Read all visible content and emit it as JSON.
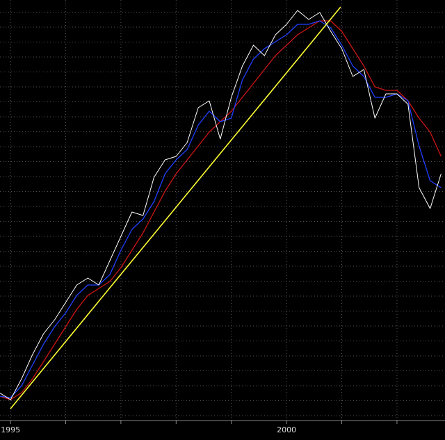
{
  "chart_data": {
    "type": "line",
    "x": [
      1994.8,
      1995.0,
      1995.2,
      1995.4,
      1995.6,
      1995.8,
      1996.0,
      1996.2,
      1996.4,
      1996.6,
      1996.8,
      1997.0,
      1997.2,
      1997.4,
      1997.6,
      1997.8,
      1998.0,
      1998.2,
      1998.4,
      1998.6,
      1998.8,
      1999.0,
      1999.2,
      1999.4,
      1999.6,
      1999.8,
      2000.0,
      2000.2,
      2000.4,
      2000.6,
      2000.8,
      2001.0,
      2001.2,
      2001.4,
      2001.6,
      2001.8,
      2002.0,
      2002.2,
      2002.4,
      2002.6,
      2002.8
    ],
    "series": [
      {
        "color": "#ffffff",
        "values": [
          40,
          30,
          60,
          95,
          125,
          145,
          170,
          195,
          205,
          195,
          230,
          265,
          300,
          295,
          350,
          375,
          380,
          400,
          450,
          460,
          405,
          465,
          510,
          540,
          525,
          555,
          570,
          590,
          577,
          587,
          560,
          535,
          495,
          505,
          435,
          470,
          470,
          455,
          335,
          305,
          355
        ]
      },
      {
        "color": "#2040ff",
        "values": [
          35,
          33,
          50,
          80,
          110,
          135,
          155,
          180,
          195,
          195,
          210,
          245,
          275,
          290,
          315,
          355,
          375,
          390,
          425,
          445,
          430,
          435,
          490,
          520,
          535,
          545,
          555,
          570,
          570,
          575,
          565,
          540,
          510,
          495,
          465,
          465,
          470,
          460,
          395,
          345,
          335
        ]
      },
      {
        "color": "#d01515",
        "values": [
          35,
          30,
          40,
          60,
          85,
          110,
          135,
          160,
          180,
          190,
          200,
          220,
          245,
          270,
          300,
          330,
          355,
          375,
          395,
          415,
          430,
          445,
          465,
          485,
          505,
          525,
          540,
          555,
          565,
          575,
          575,
          560,
          535,
          510,
          480,
          475,
          475,
          460,
          435,
          415,
          380
        ]
      }
    ],
    "trendline": {
      "color": "#ffff33",
      "x": [
        1995.0,
        2000.98
      ],
      "values": [
        17,
        595
      ]
    },
    "xlim": [
      1994.81,
      2002.87
    ],
    "xticks": [
      1995,
      2000
    ],
    "xgrid": [
      1995,
      1996,
      1997,
      1998,
      1999,
      2000,
      2001,
      2002
    ],
    "ylim": [
      0,
      600
    ],
    "yticks": [
      7,
      28.5,
      50,
      71.5,
      93,
      114.5,
      136,
      157.5,
      179,
      200.5,
      222,
      243.5,
      265,
      286.5,
      308,
      329.5,
      351,
      372.5,
      394,
      415.5,
      437,
      458.5,
      480,
      501.5,
      523,
      544.5,
      566,
      587.5
    ],
    "grid": true
  }
}
